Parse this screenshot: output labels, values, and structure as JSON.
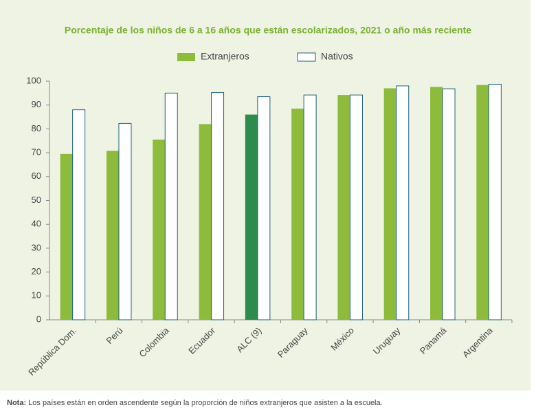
{
  "chart_data": {
    "type": "bar",
    "title": "Porcentaje de los niños de 6 a 16 años que están escolarizados, 2021 o año más reciente",
    "categories": [
      "República Dom.",
      "Perú",
      "Colombia",
      "Ecuador",
      "ALC (9)",
      "Paraguay",
      "México",
      "Uruguay",
      "Panamá",
      "Argentina"
    ],
    "series": [
      {
        "name": "Extranjeros",
        "color": "#8dbb3c",
        "colors": [
          "#8dbb3c",
          "#8dbb3c",
          "#8dbb3c",
          "#8dbb3c",
          "#2e8b4e",
          "#8dbb3c",
          "#8dbb3c",
          "#8dbb3c",
          "#8dbb3c",
          "#8dbb3c"
        ],
        "values": [
          69.5,
          70.8,
          75.5,
          82,
          86,
          88.5,
          94.2,
          97,
          97.6,
          98.4
        ]
      },
      {
        "name": "Nativos",
        "color": "#ffffff",
        "stroke": "#1f5f7a",
        "values": [
          88,
          82.3,
          95,
          95.2,
          93.5,
          94.2,
          94.2,
          98,
          96.8,
          98.7
        ]
      }
    ],
    "ylim": [
      0,
      100
    ],
    "yticks": [
      0,
      10,
      20,
      30,
      40,
      50,
      60,
      70,
      80,
      90,
      100
    ],
    "grid": false,
    "legend": "top"
  },
  "note": {
    "label": "Nota:",
    "text": " Los países están en orden ascendente según la proporción de niños extranjeros que asisten a la escuela."
  }
}
